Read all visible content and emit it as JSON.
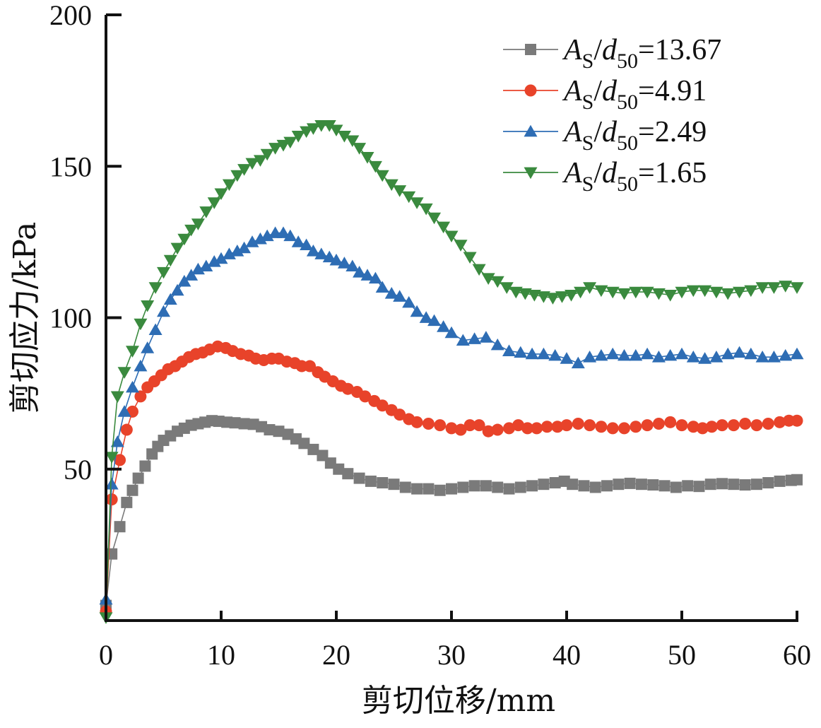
{
  "chart_data": {
    "type": "line",
    "title": "",
    "xlabel": "剪切位移/mm",
    "ylabel": "剪切应力/kPa",
    "xlim": [
      0,
      60
    ],
    "ylim": [
      0,
      200
    ],
    "xticks": [
      0,
      10,
      20,
      30,
      40,
      50,
      60
    ],
    "yticks": [
      50,
      100,
      150,
      200
    ],
    "xtick_labels": [
      "0",
      "10",
      "20",
      "30",
      "40",
      "50",
      "60"
    ],
    "ytick_labels": [
      "50",
      "100",
      "150",
      "200"
    ],
    "grid": false,
    "legend_position": "top-right",
    "series": [
      {
        "name": "AS/d50=13.67",
        "legend": {
          "var": "A",
          "var_sub": "S",
          "slash": "/",
          "var2": "d",
          "var2_sub": "50",
          "value": "=13.67"
        },
        "color": "#7a7a7a",
        "marker": "square",
        "x": [
          0,
          0.5,
          1.2,
          1.8,
          2.3,
          2.8,
          3.4,
          4,
          4.5,
          5,
          5.6,
          6.2,
          6.8,
          7.4,
          8,
          8.6,
          9.2,
          9.8,
          10.5,
          11.2,
          12,
          12.8,
          13.5,
          14.2,
          15,
          15.8,
          16.5,
          17.2,
          18,
          18.8,
          19.5,
          20.2,
          21,
          22,
          23,
          24,
          25,
          26,
          27,
          28,
          29,
          30,
          31,
          32,
          33,
          34,
          35,
          36,
          37,
          38,
          39,
          39.8,
          40.5,
          41.5,
          42.5,
          43.5,
          44.5,
          45.5,
          46.5,
          47.5,
          48.5,
          49.5,
          50.5,
          51.5,
          52.5,
          53.5,
          54.5,
          55.5,
          56.5,
          57.5,
          58.5,
          59.5,
          60
        ],
        "y": [
          5,
          22,
          31,
          39,
          43,
          47,
          51,
          55,
          57.5,
          59.5,
          61,
          62.5,
          63.5,
          64.5,
          65,
          65.5,
          66,
          65.8,
          65.5,
          65.3,
          65,
          64.8,
          64,
          63,
          62.5,
          61.5,
          60,
          58.5,
          56.5,
          54.5,
          52,
          50,
          48.5,
          47,
          46,
          45.5,
          45,
          44,
          43.5,
          43.5,
          43,
          43.5,
          44,
          44.5,
          44.5,
          44,
          43.5,
          44,
          44.5,
          45,
          45.5,
          46,
          45,
          44.5,
          44,
          44.5,
          45,
          45.3,
          45,
          44.8,
          44.5,
          44,
          44.5,
          44.3,
          45,
          45.2,
          45,
          44.8,
          45,
          45.5,
          46,
          46.3,
          46.5
        ]
      },
      {
        "name": "AS/d50=4.91",
        "legend": {
          "var": "A",
          "var_sub": "S",
          "slash": "/",
          "var2": "d",
          "var2_sub": "50",
          "value": "=4.91"
        },
        "color": "#e8432a",
        "marker": "circle",
        "x": [
          0,
          0.5,
          1.2,
          1.8,
          2.3,
          3,
          3.6,
          4.2,
          4.8,
          5.4,
          6,
          6.6,
          7.2,
          7.8,
          8.4,
          9,
          9.7,
          10.4,
          11,
          11.7,
          12.4,
          13,
          13.7,
          14.4,
          15,
          15.7,
          16.4,
          17,
          17.7,
          18.4,
          19,
          19.7,
          20.4,
          21,
          21.8,
          22.5,
          23.3,
          24,
          24.8,
          25.5,
          26.3,
          27,
          28,
          29,
          30,
          30.8,
          31.6,
          32.4,
          33.2,
          34,
          35,
          35.8,
          36.6,
          37.4,
          38.3,
          39.2,
          40,
          41,
          42,
          43,
          44,
          45,
          46,
          47,
          48,
          49,
          50,
          51,
          51.8,
          52.6,
          53.5,
          54.5,
          55.5,
          56.5,
          57.5,
          58.5,
          59.3,
          60
        ],
        "y": [
          3,
          40,
          53,
          63,
          69,
          74,
          77,
          79,
          81,
          83,
          84,
          85.5,
          87,
          88,
          88.5,
          89.5,
          90.5,
          90,
          89,
          88,
          87.5,
          86.5,
          86,
          86.5,
          86.5,
          85.5,
          85,
          84,
          84,
          82,
          80.5,
          79,
          77.5,
          76.5,
          75.5,
          74,
          72.5,
          71,
          69.5,
          68,
          66.5,
          65.5,
          65,
          64.5,
          63.5,
          63,
          64.5,
          64.5,
          62.5,
          63,
          63.5,
          64.5,
          63.5,
          63.5,
          64,
          64,
          64.5,
          65,
          64.5,
          64,
          63.5,
          63.5,
          64,
          64.5,
          65,
          65.5,
          64.5,
          64,
          63.5,
          64,
          64.5,
          64.5,
          65,
          64.5,
          65,
          65.5,
          66,
          66
        ]
      },
      {
        "name": "AS/d50=2.49",
        "legend": {
          "var": "A",
          "var_sub": "S",
          "slash": "/",
          "var2": "d",
          "var2_sub": "50",
          "value": "=2.49"
        },
        "color": "#2e6db4",
        "marker": "triangle-up",
        "x": [
          0,
          0.5,
          1,
          1.6,
          2.3,
          3,
          3.6,
          4.3,
          5,
          5.6,
          6.2,
          6.8,
          7.4,
          8,
          8.7,
          9.4,
          10,
          10.7,
          11.4,
          12,
          12.7,
          13.4,
          14,
          14.7,
          15.4,
          16,
          16.7,
          17.4,
          18,
          18.7,
          19.4,
          20,
          20.7,
          21.4,
          22,
          22.7,
          23.4,
          24,
          24.8,
          25.5,
          26.3,
          27,
          27.8,
          28.5,
          29.3,
          30,
          31,
          32,
          33,
          34,
          35,
          36,
          37,
          38,
          39,
          40,
          41,
          42,
          43,
          44,
          45,
          46,
          47,
          48,
          49,
          50,
          51,
          52,
          53,
          54,
          55,
          56,
          57,
          58,
          59,
          60
        ],
        "y": [
          7,
          45,
          59,
          69,
          77,
          84,
          90,
          96,
          102,
          106,
          109,
          112,
          114,
          116,
          117,
          118.5,
          119.5,
          121,
          122,
          123,
          125,
          126,
          127,
          128,
          128,
          127,
          125,
          124,
          122,
          121,
          120,
          119,
          118,
          117,
          115,
          114,
          113,
          110,
          108,
          107,
          105,
          102,
          100,
          99,
          97,
          95,
          92.5,
          93,
          93.5,
          91,
          89,
          88.5,
          88,
          88,
          87.5,
          86.5,
          85,
          87,
          87.5,
          88,
          87.5,
          87.5,
          88,
          87,
          87.5,
          88,
          87,
          86.5,
          87,
          88,
          88.5,
          88,
          87,
          87,
          87.5,
          88
        ]
      },
      {
        "name": "AS/d50=1.65",
        "legend": {
          "var": "A",
          "var_sub": "S",
          "slash": "/",
          "var2": "d",
          "var2_sub": "50",
          "value": "=1.65"
        },
        "color": "#3a8a3e",
        "marker": "triangle-down",
        "x": [
          0,
          0.5,
          1,
          1.6,
          2.3,
          3,
          3.6,
          4.3,
          5,
          5.6,
          6.2,
          6.8,
          7.4,
          8,
          8.7,
          9.4,
          10,
          10.7,
          11.4,
          12,
          12.7,
          13.4,
          14,
          14.7,
          15.4,
          16,
          16.7,
          17.4,
          18,
          18.7,
          19.4,
          20,
          20.7,
          21.4,
          22,
          22.7,
          23.4,
          24,
          24.8,
          25.5,
          26.3,
          27,
          27.8,
          28.5,
          29.3,
          30,
          30.8,
          31.6,
          32.4,
          33.2,
          34,
          34.8,
          35.6,
          36.4,
          37.2,
          38,
          38.8,
          39.6,
          40.4,
          41.2,
          42,
          43,
          44,
          45,
          46,
          47,
          48,
          49,
          50,
          51,
          52,
          53,
          54,
          55,
          56,
          57,
          58,
          59,
          60
        ],
        "y": [
          1,
          54,
          74,
          82,
          89,
          98,
          104,
          110,
          115,
          119,
          123,
          126,
          129,
          131,
          135,
          138,
          141,
          144,
          147,
          149,
          151,
          152,
          154,
          156,
          157,
          158,
          160,
          161.5,
          162.5,
          163.5,
          163.5,
          162,
          160,
          158.5,
          156,
          153,
          150,
          147,
          144,
          142,
          140,
          138,
          136,
          133,
          130,
          127,
          124,
          120,
          116,
          113,
          112,
          110,
          108.5,
          108,
          107.5,
          107,
          106.5,
          107,
          107.5,
          108.5,
          110,
          109,
          108.5,
          108,
          108.5,
          108.5,
          108,
          107.5,
          108.5,
          109,
          109,
          108.5,
          108,
          108.5,
          109,
          110,
          110,
          110.5,
          110
        ]
      }
    ]
  }
}
